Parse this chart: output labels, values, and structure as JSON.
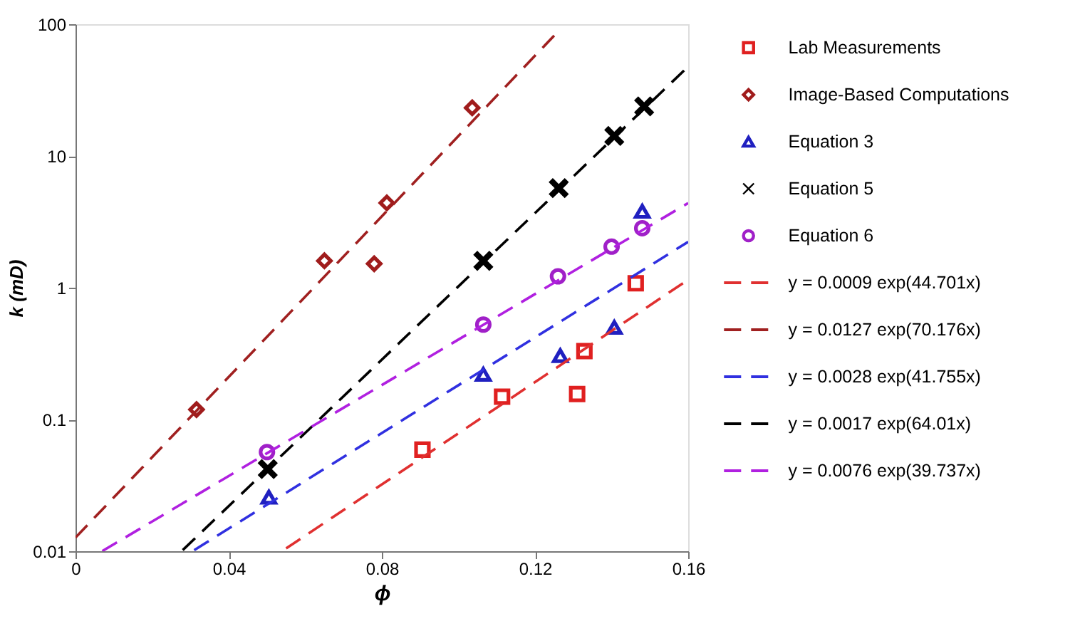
{
  "chart_data": {
    "type": "scatter",
    "xlabel": "ϕ",
    "ylabel": "k (mD)",
    "log": "y",
    "grid": false,
    "legend": "right",
    "xlim": [
      0,
      0.16
    ],
    "xticks": [
      0,
      0.04,
      0.08,
      0.12,
      0.16
    ],
    "ylim": [
      0.01,
      100
    ],
    "yticks": [
      0.01,
      0.1,
      1,
      10,
      100
    ],
    "series": [
      {
        "name": "Lab Measurements",
        "color": "#e02020",
        "marker": "square",
        "x": [
          0.0906,
          0.1114,
          0.131,
          0.1329,
          0.1463
        ],
        "values": [
          0.059,
          0.149,
          0.156,
          0.33,
          1.08
        ]
      },
      {
        "name": "Image-Based Computations",
        "color": "#a01c1c",
        "marker": "diamond",
        "x": [
          0.0316,
          0.065,
          0.078,
          0.0813,
          0.1036
        ],
        "values": [
          0.119,
          1.6,
          1.52,
          4.4,
          23.2
        ]
      },
      {
        "name": "Equation 3",
        "color": "#2020c0",
        "marker": "triangle",
        "x": [
          0.0505,
          0.1065,
          0.1266,
          0.1407,
          0.148
        ],
        "values": [
          0.0257,
          0.22,
          0.305,
          0.5,
          3.8
        ]
      },
      {
        "name": "Equation 5",
        "color": "#000000",
        "marker": "cross",
        "x": [
          0.0502,
          0.1065,
          0.1262,
          0.1407,
          0.1485
        ],
        "values": [
          0.042,
          1.6,
          5.7,
          14.2,
          23.8
        ]
      },
      {
        "name": "Equation 6",
        "color": "#a020c8",
        "marker": "circle",
        "x": [
          0.05,
          0.1065,
          0.126,
          0.14,
          0.148
        ],
        "values": [
          0.0566,
          0.525,
          1.22,
          2.05,
          2.83
        ]
      },
      {
        "type": "line",
        "name": "y = 0.0009 exp(44.701x)",
        "color": "#e03030",
        "line_style": "dashed",
        "x": [
          0.055,
          0.16
        ],
        "values": [
          0.0105,
          1.15
        ]
      },
      {
        "type": "line",
        "name": "y = 0.0127 exp(70.176x)",
        "color": "#a02020",
        "line_style": "dashed",
        "x": [
          0,
          0.125
        ],
        "values": [
          0.0127,
          81.9
        ]
      },
      {
        "type": "line",
        "name": "y = 0.0028 exp(41.755x)",
        "color": "#3030e0",
        "line_style": "dashed",
        "x": [
          0.031,
          0.16
        ],
        "values": [
          0.0102,
          2.23
        ]
      },
      {
        "type": "line",
        "name": "y = 0.0017 exp(64.01x)",
        "color": "#000000",
        "line_style": "dashed",
        "x": [
          0.028,
          0.16
        ],
        "values": [
          0.0102,
          47.7
        ]
      },
      {
        "type": "line",
        "name": "y = 0.0076 exp(39.737x)",
        "color": "#b020e0",
        "line_style": "dashed",
        "x": [
          0.007,
          0.16
        ],
        "values": [
          0.01003,
          4.39
        ]
      }
    ]
  }
}
